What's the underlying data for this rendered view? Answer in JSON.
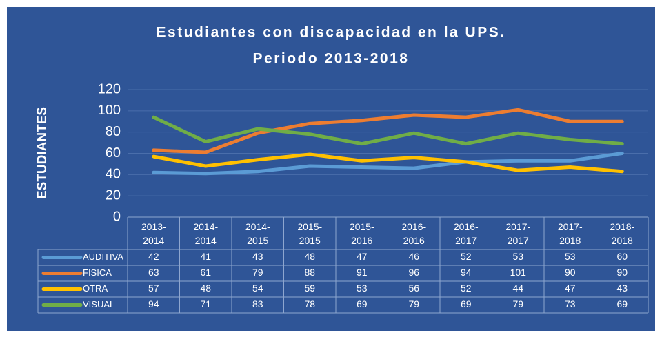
{
  "chart_data": {
    "type": "line",
    "title": "Estudiantes con discapacidad en la UPS.",
    "subtitle": "Periodo 2013-2018",
    "y_label": "ESTUDIANTES",
    "categories": [
      "2013-2014",
      "2014-2014",
      "2014-2015",
      "2015-2015",
      "2015-2016",
      "2016-2016",
      "2016-2017",
      "2017-2017",
      "2017-2018",
      "2018-2018"
    ],
    "series": [
      {
        "name": "AUDITIVA",
        "color": "#5b9bd5",
        "values": [
          42,
          41,
          43,
          48,
          47,
          46,
          52,
          53,
          53,
          60
        ]
      },
      {
        "name": "FISICA",
        "color": "#ed7d31",
        "values": [
          63,
          61,
          79,
          88,
          91,
          96,
          94,
          101,
          90,
          90
        ]
      },
      {
        "name": "OTRA",
        "color": "#ffc000",
        "values": [
          57,
          48,
          54,
          59,
          53,
          56,
          52,
          44,
          47,
          43
        ]
      },
      {
        "name": "VISUAL",
        "color": "#70ad47",
        "values": [
          94,
          71,
          83,
          78,
          69,
          79,
          69,
          79,
          73,
          69
        ]
      }
    ],
    "ylim": [
      0,
      120
    ],
    "yticks": [
      0,
      20,
      40,
      60,
      80,
      100,
      120
    ],
    "grid": true
  }
}
